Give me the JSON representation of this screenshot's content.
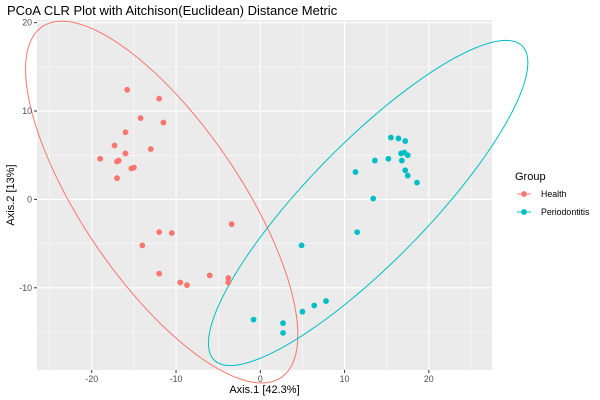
{
  "chart_data": {
    "type": "scatter",
    "title": "PCoA CLR Plot with Aitchison(Euclidean) Distance Metric",
    "xlabel": "Axis.1   [42.3%]",
    "ylabel": "Axis.2   [13%]",
    "xlim": [
      -26.5,
      27.5
    ],
    "ylim": [
      -19.3,
      20.3
    ],
    "x_ticks": [
      -20,
      -10,
      0,
      10,
      20
    ],
    "y_ticks": [
      -10,
      0,
      10,
      20
    ],
    "x_minor_ticks": [
      -25,
      -15,
      -5,
      5,
      15,
      25
    ],
    "y_minor_ticks": [
      -15,
      -5,
      5,
      15
    ],
    "grid": true,
    "background": "#ebebeb",
    "legend": {
      "title": "Group",
      "position": "right"
    },
    "series": [
      {
        "name": "Health",
        "color": "#f8766d",
        "points": [
          [
            -15.8,
            12.4
          ],
          [
            -12.0,
            11.4
          ],
          [
            -14.2,
            9.2
          ],
          [
            -11.5,
            8.7
          ],
          [
            -16.0,
            7.6
          ],
          [
            -17.3,
            6.1
          ],
          [
            -13.0,
            5.7
          ],
          [
            -16.0,
            5.2
          ],
          [
            -19.0,
            4.6
          ],
          [
            -17.0,
            4.3
          ],
          [
            -16.8,
            4.4
          ],
          [
            -15.0,
            3.6
          ],
          [
            -15.3,
            3.5
          ],
          [
            -17.0,
            2.4
          ],
          [
            -3.4,
            -2.8
          ],
          [
            -12.0,
            -3.7
          ],
          [
            -10.5,
            -3.8
          ],
          [
            -14.0,
            -5.2
          ],
          [
            -12.0,
            -8.4
          ],
          [
            -6.0,
            -8.6
          ],
          [
            -3.8,
            -8.9
          ],
          [
            -3.8,
            -9.4
          ],
          [
            -9.5,
            -9.4
          ],
          [
            -8.7,
            -9.7
          ]
        ],
        "ellipse": {
          "center": [
            -11.7,
            -0.3
          ],
          "semi_axes": [
            24.4,
            9.2
          ],
          "angle_deg": -54
        }
      },
      {
        "name": "Periodontitis",
        "color": "#00bfc4",
        "points": [
          [
            15.5,
            7.0
          ],
          [
            16.4,
            6.9
          ],
          [
            17.2,
            6.6
          ],
          [
            16.7,
            5.2
          ],
          [
            17.1,
            5.3
          ],
          [
            17.5,
            5.0
          ],
          [
            15.2,
            4.6
          ],
          [
            16.8,
            4.4
          ],
          [
            13.6,
            4.4
          ],
          [
            11.3,
            3.1
          ],
          [
            17.2,
            3.3
          ],
          [
            17.5,
            2.7
          ],
          [
            18.6,
            1.9
          ],
          [
            13.4,
            0.1
          ],
          [
            11.5,
            -3.7
          ],
          [
            4.9,
            -5.2
          ],
          [
            7.8,
            -11.5
          ],
          [
            6.4,
            -12.0
          ],
          [
            5.0,
            -12.7
          ],
          [
            2.7,
            -14.0
          ],
          [
            2.7,
            -15.1
          ],
          [
            -0.8,
            -13.6
          ]
        ],
        "ellipse": {
          "center": [
            12.8,
            -0.4
          ],
          "semi_axes": [
            25.5,
            6.9
          ],
          "angle_deg": 44
        }
      }
    ]
  }
}
